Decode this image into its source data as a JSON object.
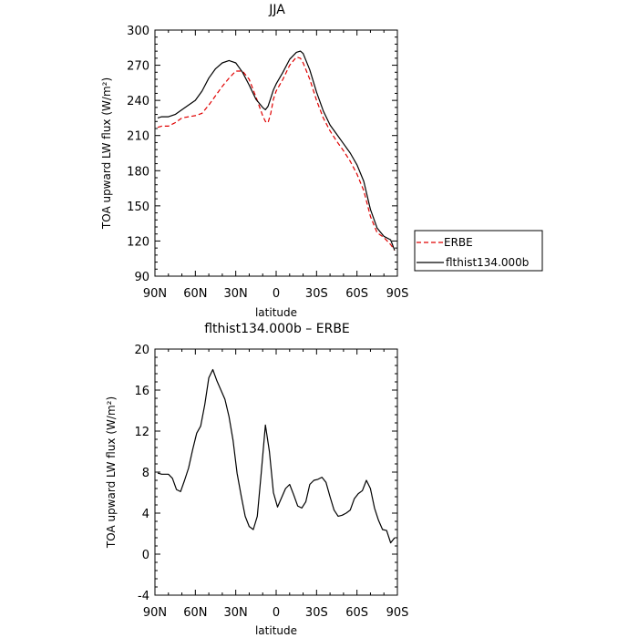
{
  "chart_data": [
    {
      "type": "line",
      "title": "JJA",
      "xlabel": "latitude",
      "ylabel": "TOA upward LW flux (W/m²)",
      "xlim": [
        90,
        -90
      ],
      "ylim": [
        90,
        300
      ],
      "xticks": [
        {
          "value": 90,
          "label": "90N"
        },
        {
          "value": 60,
          "label": "60N"
        },
        {
          "value": 30,
          "label": "30N"
        },
        {
          "value": 0,
          "label": "0"
        },
        {
          "value": -30,
          "label": "30S"
        },
        {
          "value": -60,
          "label": "60S"
        },
        {
          "value": -90,
          "label": "90S"
        }
      ],
      "yticks": [
        90,
        120,
        150,
        180,
        210,
        240,
        270,
        300
      ],
      "legend": {
        "placement": "outside-right"
      },
      "series": [
        {
          "name": "ERBE",
          "color": "#e00000",
          "dash": true,
          "x": [
            88,
            85,
            80,
            75,
            70,
            65,
            60,
            55,
            50,
            45,
            40,
            35,
            30,
            25,
            20,
            15,
            10,
            8,
            6,
            4,
            2,
            0,
            -5,
            -10,
            -15,
            -18,
            -20,
            -25,
            -30,
            -35,
            -40,
            -45,
            -50,
            -55,
            -60,
            -65,
            -70,
            -75,
            -80,
            -85,
            -88
          ],
          "y": [
            217,
            218,
            218,
            221,
            225,
            226,
            227,
            229,
            236,
            244,
            252,
            259,
            265,
            265,
            258,
            243,
            227,
            222,
            221,
            229,
            241,
            248,
            258,
            270,
            277,
            276,
            272,
            258,
            240,
            225,
            214,
            205,
            197,
            188,
            177,
            163,
            141,
            127,
            123,
            117,
            112
          ]
        },
        {
          "name": "flthist134.000b",
          "color": "#000000",
          "dash": false,
          "x": [
            88,
            85,
            80,
            75,
            70,
            65,
            60,
            55,
            50,
            45,
            40,
            35,
            30,
            25,
            20,
            15,
            10,
            8,
            6,
            4,
            2,
            0,
            -5,
            -10,
            -15,
            -18,
            -20,
            -25,
            -30,
            -35,
            -40,
            -45,
            -50,
            -55,
            -60,
            -65,
            -70,
            -75,
            -80,
            -85,
            -88
          ],
          "y": [
            225,
            226,
            226,
            228,
            232,
            236,
            240,
            248,
            259,
            267,
            272,
            274,
            272,
            264,
            253,
            241,
            234,
            232,
            235,
            242,
            249,
            254,
            264,
            275,
            281,
            282,
            280,
            266,
            247,
            231,
            219,
            211,
            203,
            195,
            185,
            171,
            147,
            131,
            124,
            121,
            112
          ]
        }
      ]
    },
    {
      "type": "line",
      "title": "flthist134.000b – ERBE",
      "xlabel": "latitude",
      "ylabel": "TOA upward LW flux (W/m²)",
      "xlim": [
        90,
        -90
      ],
      "ylim": [
        -4,
        20
      ],
      "xticks": [
        {
          "value": 90,
          "label": "90N"
        },
        {
          "value": 60,
          "label": "60N"
        },
        {
          "value": 30,
          "label": "30N"
        },
        {
          "value": 0,
          "label": "0"
        },
        {
          "value": -30,
          "label": "30S"
        },
        {
          "value": -60,
          "label": "60S"
        },
        {
          "value": -90,
          "label": "90S"
        }
      ],
      "yticks": [
        -4,
        0,
        4,
        8,
        12,
        16,
        20
      ],
      "series": [
        {
          "color": "#000000",
          "dash": false,
          "x": [
            88,
            85,
            80,
            77,
            74,
            71,
            68,
            65,
            62,
            59,
            56,
            53,
            50,
            47,
            44,
            41,
            38,
            35,
            32,
            29,
            26,
            23,
            20,
            17,
            14,
            11,
            8,
            5,
            2,
            -1,
            -4,
            -7,
            -10,
            -13,
            -16,
            -19,
            -22,
            -25,
            -28,
            -31,
            -34,
            -37,
            -40,
            -43,
            -46,
            -49,
            -52,
            -55,
            -58,
            -61,
            -64,
            -67,
            -70,
            -73,
            -76,
            -79,
            -82,
            -85,
            -88
          ],
          "y": [
            7.9,
            7.8,
            7.8,
            7.4,
            6.3,
            6.1,
            7.2,
            8.4,
            10.2,
            11.8,
            12.5,
            14.6,
            17.2,
            18.0,
            16.9,
            16.0,
            15.1,
            13.4,
            11.1,
            7.9,
            5.7,
            3.7,
            2.7,
            2.4,
            3.7,
            8.0,
            12.6,
            10.0,
            6.0,
            4.6,
            5.5,
            6.4,
            6.8,
            5.8,
            4.7,
            4.5,
            5.1,
            6.8,
            7.2,
            7.3,
            7.5,
            7.0,
            5.6,
            4.3,
            3.7,
            3.8,
            4.0,
            4.3,
            5.4,
            5.9,
            6.2,
            7.2,
            6.4,
            4.5,
            3.3,
            2.4,
            2.3,
            1.1,
            1.6
          ]
        }
      ]
    }
  ]
}
